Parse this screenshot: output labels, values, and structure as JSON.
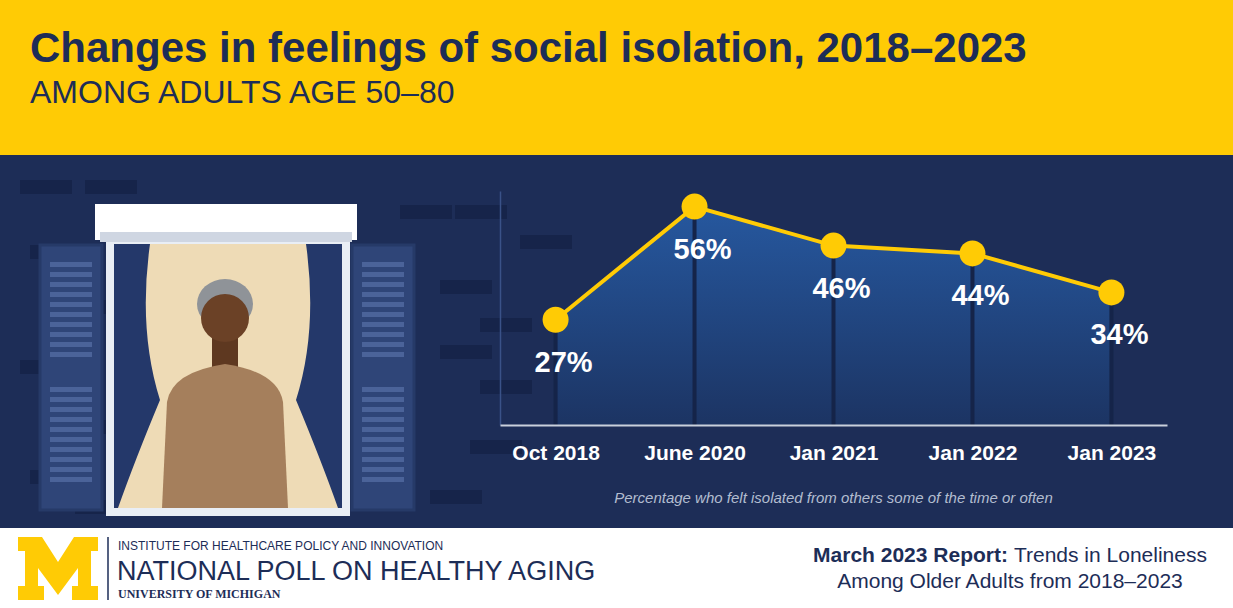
{
  "chart_data": {
    "type": "line",
    "title": "Changes in feelings of social isolation, 2018–2023",
    "subtitle": "AMONG ADULTS AGE 50–80",
    "note": "Percentage who felt isolated from others some of the time or often",
    "categories": [
      "Oct 2018",
      "June 2020",
      "Jan 2021",
      "Jan 2022",
      "Jan 2023"
    ],
    "values": [
      27,
      56,
      46,
      44,
      34
    ],
    "value_labels": [
      "27%",
      "56%",
      "46%",
      "44%",
      "34%"
    ],
    "data_labels": true,
    "color": "#ffcb05",
    "marker": "circle",
    "ylim": [
      0,
      60
    ],
    "tick_labels": "x",
    "grid": false
  },
  "footer": {
    "institute": "INSTITUTE FOR HEALTHCARE POLICY AND INNOVATION",
    "poll": "NATIONAL POLL ON HEALTHY AGING",
    "university": "UNIVERSITY OF MICHIGAN",
    "report_label": "March 2023 Report:",
    "report_title": [
      "Trends in Loneliness",
      "Among Older Adults from 2018–2023"
    ]
  }
}
